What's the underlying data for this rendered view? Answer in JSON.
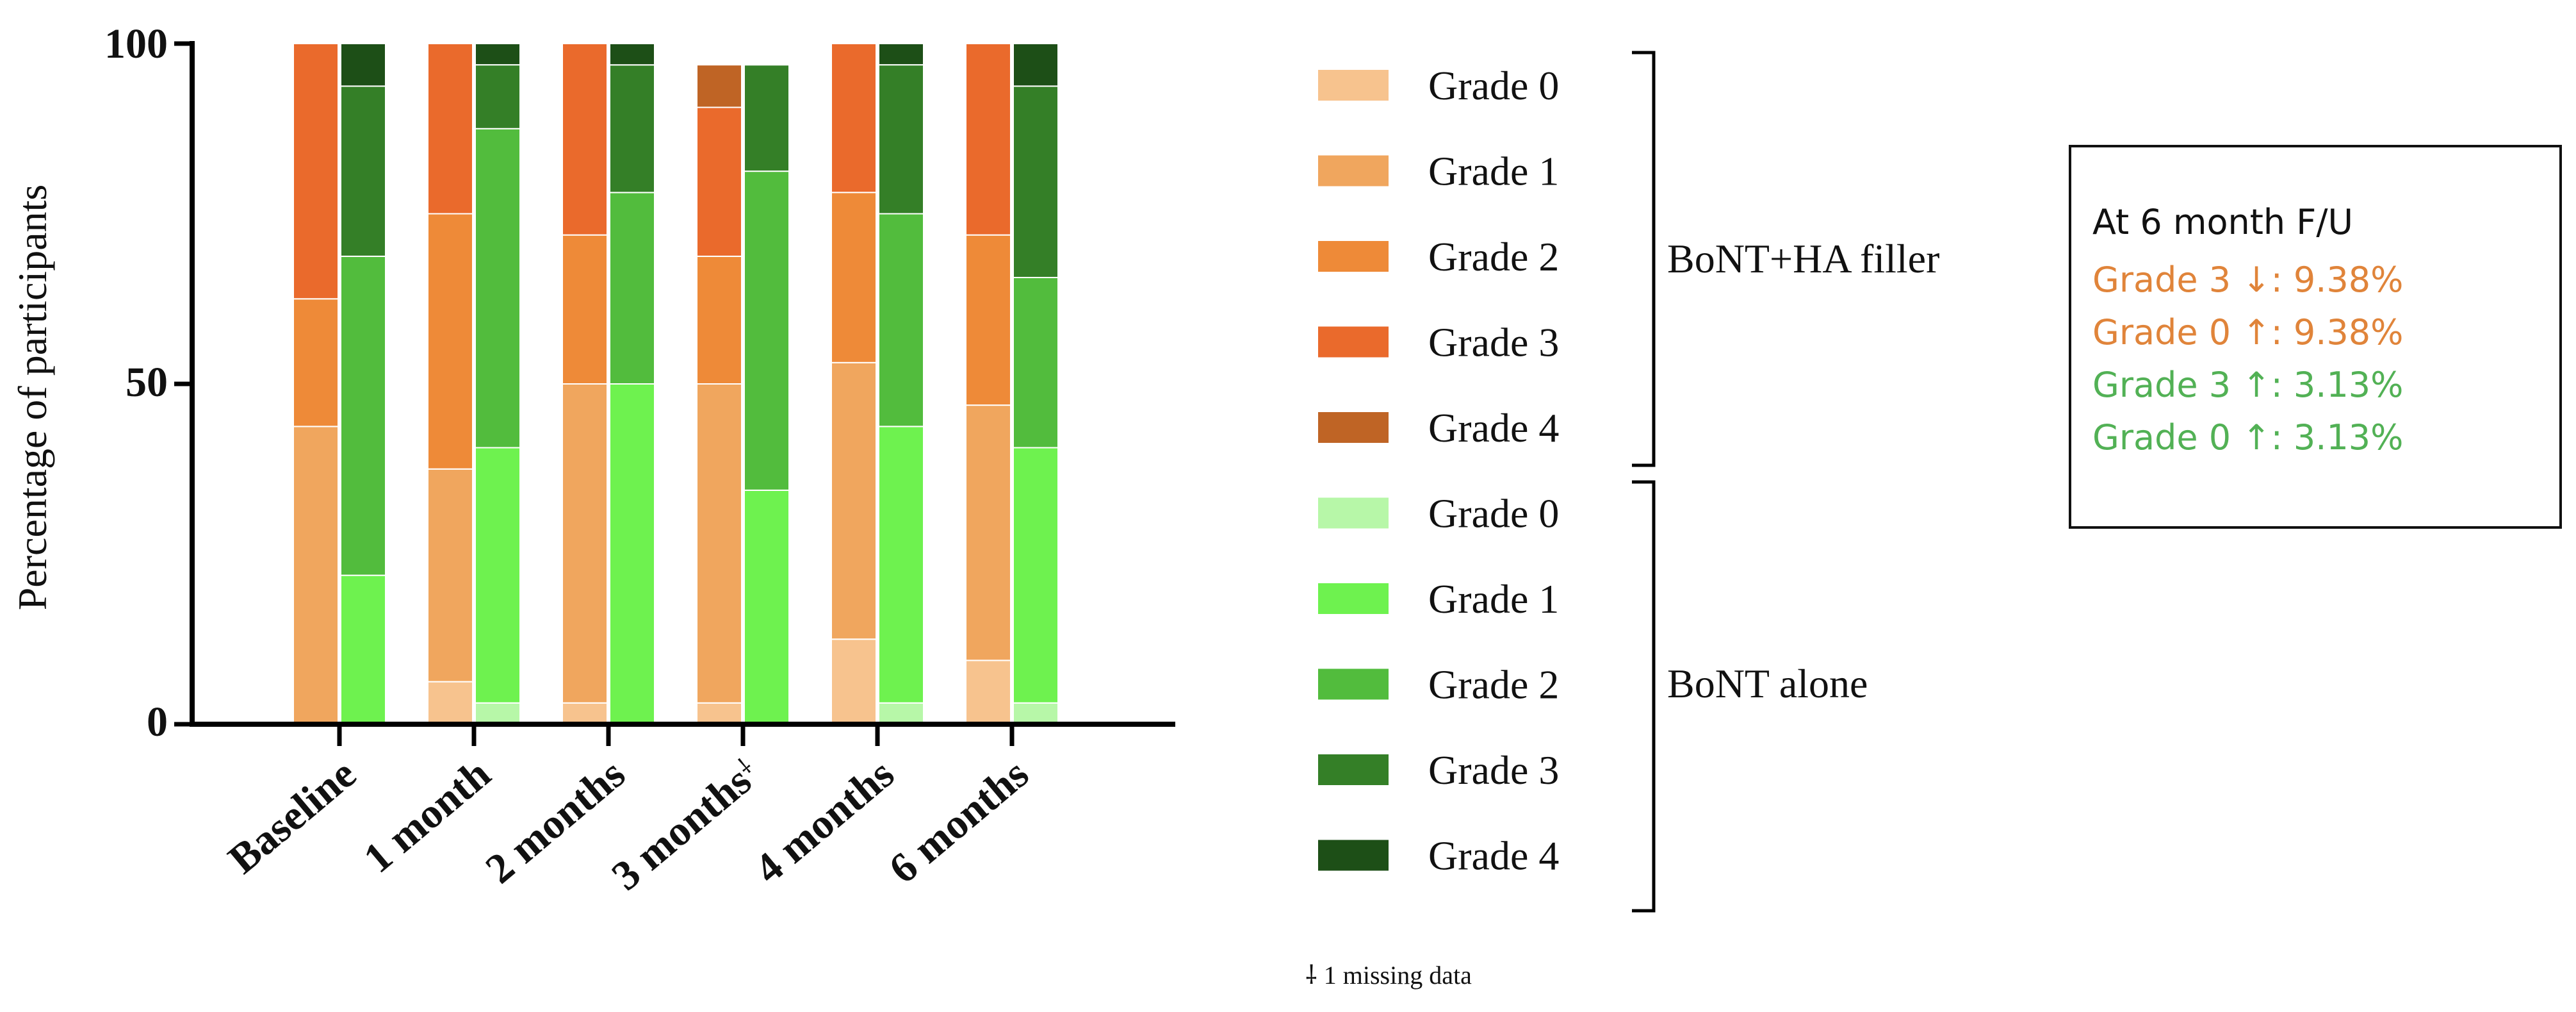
{
  "chart_data": {
    "type": "bar",
    "subtype": "stacked-100-grouped",
    "ylabel": "Percentage of participants",
    "ylim": [
      0,
      100
    ],
    "yticks": [
      "0",
      "50",
      "100"
    ],
    "categories": [
      "Baseline",
      "1 month",
      "2 months",
      "3 months",
      "4 months",
      "6 months"
    ],
    "category_marks": [
      "",
      "",
      "",
      "⸸",
      "",
      ""
    ],
    "groups": [
      {
        "name": "BoNT+HA filler",
        "series": [
          {
            "name": "Grade 0",
            "color": "#F7C38E",
            "values": [
              0,
              6.25,
              3.13,
              3.13,
              12.5,
              9.38
            ]
          },
          {
            "name": "Grade 1",
            "color": "#F0A65E",
            "values": [
              43.75,
              31.25,
              46.87,
              46.87,
              40.63,
              37.5
            ]
          },
          {
            "name": "Grade 2",
            "color": "#EE8A38",
            "values": [
              18.75,
              37.5,
              21.88,
              18.75,
              25.0,
              25.0
            ]
          },
          {
            "name": "Grade 3",
            "color": "#EA6A2C",
            "values": [
              37.5,
              25.0,
              28.12,
              21.88,
              21.87,
              28.12
            ]
          },
          {
            "name": "Grade 4",
            "color": "#BF6425",
            "values": [
              0,
              0,
              0,
              6.25,
              0,
              0
            ]
          }
        ]
      },
      {
        "name": "BoNT alone",
        "series": [
          {
            "name": "Grade 0",
            "color": "#B7F7A8",
            "values": [
              0,
              3.13,
              0,
              0,
              3.13,
              3.13
            ]
          },
          {
            "name": "Grade 1",
            "color": "#6EF24F",
            "values": [
              21.88,
              37.5,
              50.0,
              34.38,
              40.62,
              37.5
            ]
          },
          {
            "name": "Grade 2",
            "color": "#52BC3D",
            "values": [
              46.87,
              46.87,
              28.12,
              46.87,
              31.25,
              25.0
            ]
          },
          {
            "name": "Grade 3",
            "color": "#347F27",
            "values": [
              25.0,
              9.38,
              18.75,
              15.62,
              21.88,
              28.12
            ]
          },
          {
            "name": "Grade 4",
            "color": "#1D4F17",
            "values": [
              6.25,
              3.12,
              3.13,
              0,
              3.12,
              6.25
            ]
          }
        ]
      }
    ],
    "legend_position": "right",
    "footnote": "⸸ 1 missing data"
  },
  "annotation": {
    "title": "At 6 month F/U",
    "lines": [
      {
        "text": "Grade 3 ↓: 9.38%",
        "color": "#E0843A"
      },
      {
        "text": "Grade 0 ↑: 9.38%",
        "color": "#E0843A"
      },
      {
        "text": "Grade 3 ↑: 3.13%",
        "color": "#52B155"
      },
      {
        "text": "Grade 0 ↑: 3.13%",
        "color": "#52B155"
      }
    ]
  }
}
